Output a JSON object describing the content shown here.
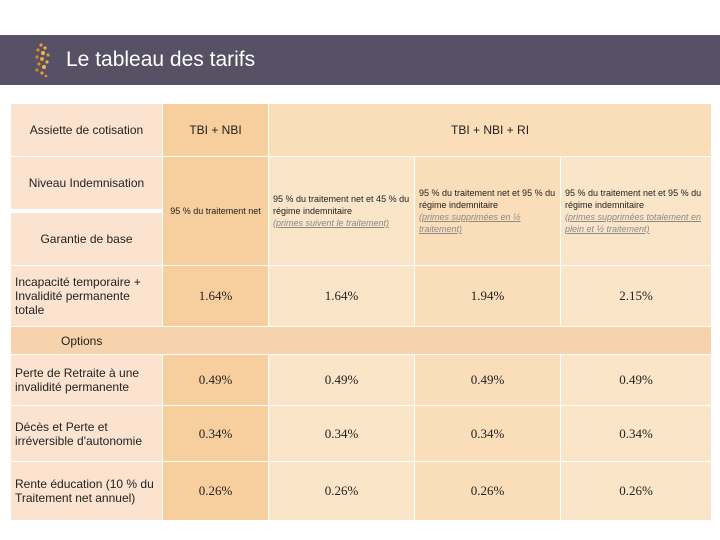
{
  "header": {
    "title": "Le tableau des tarifs"
  },
  "table": {
    "head": {
      "assiette": "Assiette de cotisation",
      "tbi_nbi": "TBI + NBI",
      "tbi_nbi_ri": "TBI + NBI + RI"
    },
    "labels": {
      "niveau": "Niveau Indemnisation",
      "garantie": "Garantie de base"
    },
    "levels": [
      {
        "main": "95 % du traitement net",
        "sub": ""
      },
      {
        "main": "95 % du traitement net et 45 % du régime indemnitaire",
        "sub": "(primes suivent le traitement)"
      },
      {
        "main": "95 % du traitement net et 95 % du régime indemnitaire",
        "sub": "(primes supprimées en ½ traitement)"
      },
      {
        "main": "95 % du traitement net et 95 % du régime indemnitaire",
        "sub": "(primes supprimées totalement en plein et ½ traitement)"
      }
    ],
    "base_row": {
      "label": "Incapacité temporaire + Invalidité permanente totale",
      "values": [
        "1.64%",
        "1.64%",
        "1.94%",
        "2.15%"
      ]
    },
    "options_label": "Options",
    "option_rows": [
      {
        "label": "Perte de Retraite à une invalidité permanente",
        "values": [
          "0.49%",
          "0.49%",
          "0.49%",
          "0.49%"
        ]
      },
      {
        "label": "Décès et Perte et irréversible d'autonomie",
        "values": [
          "0.34%",
          "0.34%",
          "0.34%",
          "0.34%"
        ]
      },
      {
        "label": "Rente éducation (10 % du Traitement net annuel)",
        "values": [
          "0.26%",
          "0.26%",
          "0.26%",
          "0.26%"
        ]
      }
    ]
  }
}
